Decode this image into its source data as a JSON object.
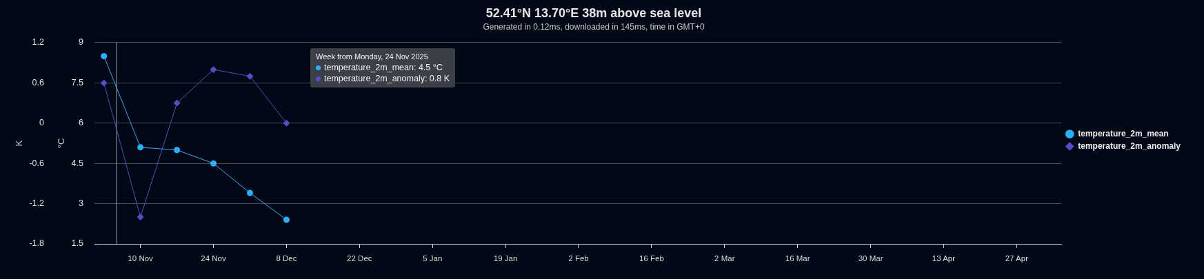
{
  "chart_data": {
    "type": "line",
    "title": "52.41°N 13.70°E 38m above sea level",
    "subtitle": "Generated in 0.12ms, downloaded in 145ms, time in GMT+0",
    "ylabel": "°C",
    "y2label": "K",
    "x": [
      "2025-11-03",
      "2025-11-10",
      "2025-11-17",
      "2025-11-24",
      "2025-12-01",
      "2025-12-08"
    ],
    "series": [
      {
        "name": "temperature_2m_mean",
        "color": "#2ab0f9",
        "marker": "circle",
        "values": [
          8.5,
          5.1,
          5.0,
          4.5,
          3.4,
          2.4
        ]
      },
      {
        "name": "temperature_2m_anomaly",
        "color": "#584cc8",
        "marker": "diamond",
        "axis": "y2",
        "values": [
          0.6,
          -1.4,
          0.3,
          0.8,
          0.7,
          0
        ]
      }
    ],
    "xlim": [
      "2025-11-01T04:30",
      "2026-05-05T14:00"
    ],
    "xticks": [
      {
        "value": "2025-11-10",
        "label": "10 Nov"
      },
      {
        "value": "2025-11-24",
        "label": "24 Nov"
      },
      {
        "value": "2025-12-08",
        "label": "8 Dec"
      },
      {
        "value": "2025-12-22",
        "label": "22 Dec"
      },
      {
        "value": "2026-01-05",
        "label": "5 Jan"
      },
      {
        "value": "2026-01-19",
        "label": "19 Jan"
      },
      {
        "value": "2026-02-02",
        "label": "2 Feb"
      },
      {
        "value": "2026-02-16",
        "label": "16 Feb"
      },
      {
        "value": "2026-03-02",
        "label": "2 Mar"
      },
      {
        "value": "2026-03-16",
        "label": "16 Mar"
      },
      {
        "value": "2026-03-30",
        "label": "30 Mar"
      },
      {
        "value": "2026-04-13",
        "label": "13 Apr"
      },
      {
        "value": "2026-04-27",
        "label": "27 Apr"
      }
    ],
    "ylim": [
      1.5,
      9
    ],
    "yticks": [
      1.5,
      3,
      4.5,
      6,
      7.5,
      9
    ],
    "y2lim": [
      -1.8,
      1.2
    ],
    "y2ticks": [
      -1.8,
      -1.2,
      -0.6,
      0,
      0.6,
      1.2
    ],
    "grid": "y",
    "legend": "right",
    "ref_lines": [
      {
        "axis": "x",
        "value": "2025-11-05T10:00",
        "color": "#a0a0a0"
      }
    ],
    "annotations": [
      "Week from Monday, 24 Nov 2025",
      "temperature_2m_mean: 4.5 °C",
      "temperature_2m_anomaly: 0.8 K"
    ]
  }
}
